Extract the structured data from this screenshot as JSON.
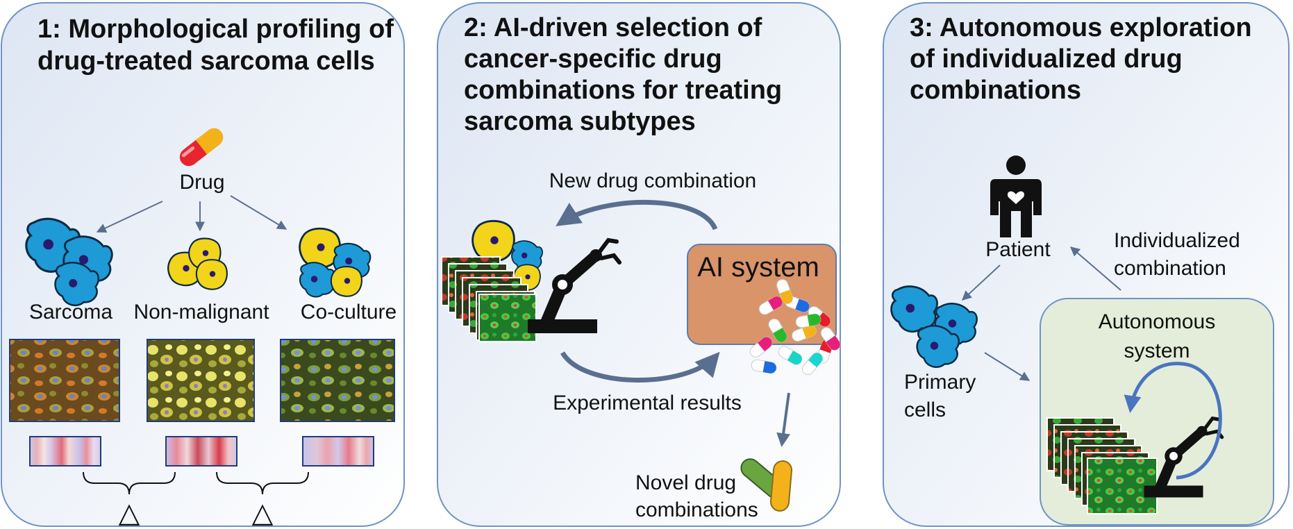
{
  "panel1": {
    "title_line1": "1: Morphological profiling of",
    "title_line2": "drug-treated sarcoma cells",
    "drug_label": "Drug",
    "cell_sarcoma": "Sarcoma",
    "cell_nonmalignant": "Non-malignant",
    "cell_coculture": "Co-culture",
    "delta_symbol": "△"
  },
  "panel2": {
    "title_line1": "2: AI-driven selection of",
    "title_line2": "cancer-specific drug",
    "title_line3": "combinations for treating",
    "title_line4": "sarcoma subtypes",
    "loop_top_label": "New drug combination",
    "loop_bottom_label": "Experimental  results",
    "ai_box_label": "AI system",
    "output_line1": "Novel drug",
    "output_line2": "combinations"
  },
  "panel3": {
    "title_line1": "3: Autonomous exploration",
    "title_line2": "of individualized drug",
    "title_line3": "combinations",
    "patient_label": "Patient",
    "individualized_line1": "Individualized",
    "individualized_line2": "combination",
    "primary_line1": "Primary",
    "primary_line2": "cells",
    "autonomous_line1": "Autonomous",
    "autonomous_line2": "system"
  },
  "colors": {
    "cancer_cell": "#1e9ad6",
    "normal_cell": "#f2d41a",
    "nucleus": "#2a1a6e",
    "ai_box": "#d9946a",
    "auto_box": "#e3edd9",
    "panel_border": "#6f93c4",
    "loop_arrow": "#5a6f8f",
    "auto_arrow": "#4a74c0"
  },
  "icons": {
    "capsule": "capsule-icon",
    "robot_arm": "robot-arm-icon",
    "patient": "person-heart-icon"
  }
}
